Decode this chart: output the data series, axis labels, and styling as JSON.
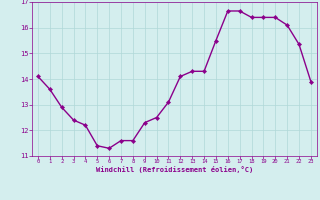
{
  "x": [
    0,
    1,
    2,
    3,
    4,
    5,
    6,
    7,
    8,
    9,
    10,
    11,
    12,
    13,
    14,
    15,
    16,
    17,
    18,
    19,
    20,
    21,
    22,
    23
  ],
  "y": [
    14.1,
    13.6,
    12.9,
    12.4,
    12.2,
    11.4,
    11.3,
    11.6,
    11.6,
    12.3,
    12.5,
    13.1,
    14.1,
    14.3,
    14.3,
    15.5,
    16.65,
    16.65,
    16.4,
    16.4,
    16.4,
    16.1,
    15.35,
    13.9
  ],
  "line_color": "#8b008b",
  "marker": "D",
  "marker_size": 2.2,
  "bg_color": "#d4eeee",
  "grid_color": "#b0d8d8",
  "xlabel": "Windchill (Refroidissement éolien,°C)",
  "xlabel_color": "#8b008b",
  "tick_color": "#8b008b",
  "xlim": [
    -0.5,
    23.5
  ],
  "ylim": [
    11.0,
    17.0
  ],
  "yticks": [
    11,
    12,
    13,
    14,
    15,
    16,
    17
  ],
  "xticks": [
    0,
    1,
    2,
    3,
    4,
    5,
    6,
    7,
    8,
    9,
    10,
    11,
    12,
    13,
    14,
    15,
    16,
    17,
    18,
    19,
    20,
    21,
    22,
    23
  ],
  "linewidth": 1.0
}
